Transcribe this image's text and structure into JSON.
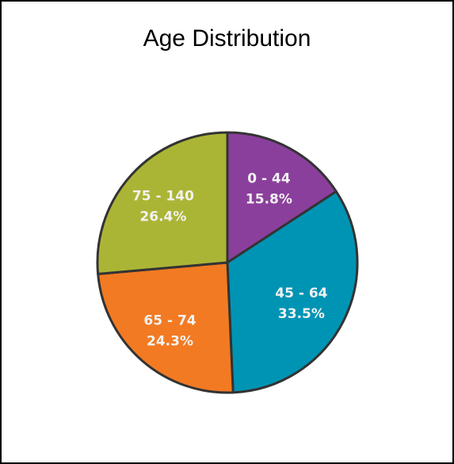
{
  "chart_data": {
    "type": "pie",
    "title": "Age Distribution",
    "categories": [
      "0 - 44",
      "45 - 64",
      "65 - 74",
      "75 - 140"
    ],
    "values": [
      15.8,
      33.5,
      24.3,
      26.4
    ],
    "value_labels": [
      "15.8%",
      "33.5%",
      "24.3%",
      "26.4%"
    ],
    "colors": [
      "#8b3f9c",
      "#0094b4",
      "#f27a22",
      "#abb535"
    ],
    "start_angle_deg": 0,
    "direction": "clockwise",
    "legend": "none",
    "outline_color": "#333333",
    "label_color": "#f2f2f2"
  }
}
